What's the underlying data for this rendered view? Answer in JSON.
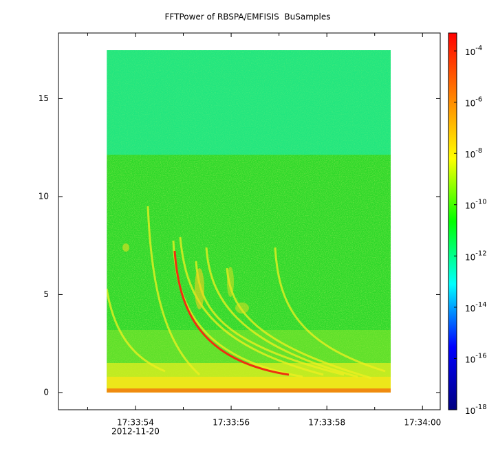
{
  "chart_data": {
    "type": "spectrogram",
    "title": "FFTPower of RBSPA/EMFISIS  BuSamples",
    "x_date_label": "2012-11-20",
    "xlim": [
      52.39,
      60.37
    ],
    "xticks": [
      {
        "value": 54,
        "label": "17:33:54"
      },
      {
        "value": 56,
        "label": "17:33:56"
      },
      {
        "value": 58,
        "label": "17:33:58"
      },
      {
        "value": 60,
        "label": "17:34:00"
      }
    ],
    "xminorticks": [
      53,
      55,
      57,
      59
    ],
    "ylim": [
      -0.88,
      18.35
    ],
    "yticks": [
      0,
      5,
      10,
      15
    ],
    "data_extent": {
      "x": [
        53.4,
        59.34
      ],
      "y": [
        0,
        17.5
      ]
    },
    "zscale": "log",
    "zlim": [
      1e-18,
      0.0005
    ],
    "zticks": [
      {
        "value": 0.0001,
        "label": "10",
        "exponent": "-4"
      },
      {
        "value": 1e-06,
        "label": "10",
        "exponent": "-6"
      },
      {
        "value": 1e-08,
        "label": "10",
        "exponent": "-8"
      },
      {
        "value": 1e-10,
        "label": "10",
        "exponent": "-10"
      },
      {
        "value": 1e-12,
        "label": "10",
        "exponent": "-12"
      },
      {
        "value": 1e-14,
        "label": "10",
        "exponent": "-14"
      },
      {
        "value": 1e-16,
        "label": "10",
        "exponent": "-16"
      },
      {
        "value": 1e-18,
        "label": "10",
        "exponent": "-18"
      }
    ],
    "colormap": [
      "#000080",
      "#0000ff",
      "#00ffff",
      "#00ff00",
      "#ffff00",
      "#ff8000",
      "#ff0000"
    ]
  }
}
